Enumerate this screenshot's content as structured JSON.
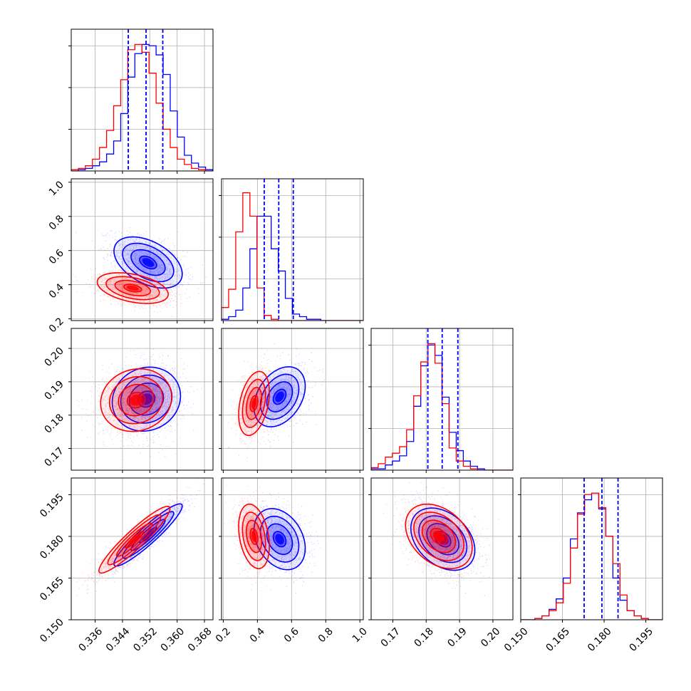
{
  "chart_data": {
    "type": "corner",
    "series": [
      {
        "name": "",
        "color": "#0000ff"
      },
      {
        "name": "",
        "color": "#ff0000"
      }
    ],
    "parameters": [
      {
        "range": [
          0.329,
          0.3705
        ],
        "ticks": [
          "0.336",
          "0.344",
          "0.352",
          "0.360",
          "0.368"
        ],
        "tick_values": [
          0.336,
          0.344,
          0.352,
          0.36,
          0.368
        ]
      },
      {
        "range": [
          0.19,
          1.02
        ],
        "ticks": [
          "0.2",
          "0.4",
          "0.6",
          "0.8",
          "1.0"
        ],
        "tick_values": [
          0.2,
          0.4,
          0.6,
          0.8,
          1.0
        ]
      },
      {
        "range": [
          0.1635,
          0.206
        ],
        "ticks": [
          "0.17",
          "0.18",
          "0.19",
          "0.20"
        ],
        "tick_values": [
          0.17,
          0.18,
          0.19,
          0.2
        ]
      },
      {
        "range": [
          0.15,
          0.201
        ],
        "ticks": [
          "0.150",
          "0.165",
          "0.180",
          "0.195"
        ],
        "tick_values": [
          0.15,
          0.165,
          0.18,
          0.195
        ]
      }
    ],
    "quantiles": [
      [
        0.3457,
        0.3509,
        0.3558
      ],
      [
        0.44,
        0.525,
        0.61
      ],
      [
        0.1805,
        0.1848,
        0.1895
      ],
      [
        0.1728,
        0.1792,
        0.185
      ]
    ],
    "histograms": [
      {
        "edges_start": 0.329,
        "edges_step": 0.00207,
        "blue": [
          0,
          1,
          2,
          4,
          7,
          13,
          23,
          44,
          72,
          90,
          97,
          96,
          89,
          74,
          46,
          26,
          12,
          6,
          3,
          1
        ],
        "red": [
          1,
          2,
          4,
          9,
          18,
          31,
          50,
          70,
          93,
          97,
          91,
          75,
          52,
          32,
          18,
          9,
          5,
          2,
          1,
          0
        ]
      },
      {
        "edges_start": 0.19,
        "edges_step": 0.0415,
        "blue": [
          1,
          3,
          8,
          25,
          55,
          80,
          80,
          55,
          38,
          17,
          5,
          3,
          1,
          1,
          0,
          0,
          0,
          0,
          0,
          0
        ],
        "red": [
          10,
          24,
          68,
          98,
          80,
          25,
          4,
          1,
          0,
          0,
          0,
          0,
          0,
          0,
          0,
          0,
          0,
          0,
          0,
          0
        ]
      },
      {
        "edges_start": 0.1635,
        "edges_step": 0.002125,
        "blue": [
          1,
          1,
          4,
          7,
          11,
          22,
          49,
          80,
          96,
          88,
          56,
          29,
          15,
          7,
          3,
          1,
          0,
          0,
          0,
          0
        ],
        "red": [
          2,
          5,
          10,
          13,
          18,
          31,
          57,
          83,
          97,
          82,
          51,
          17,
          7,
          3,
          1,
          0,
          0,
          0,
          0,
          0
        ]
      },
      {
        "edges_start": 0.15,
        "edges_step": 0.00255,
        "blue": [
          0,
          0,
          1,
          3,
          8,
          16,
          32,
          62,
          82,
          92,
          97,
          85,
          64,
          32,
          15,
          7,
          3,
          1,
          0,
          0
        ],
        "red": [
          0,
          0,
          1,
          3,
          7,
          13,
          28,
          55,
          81,
          96,
          97,
          86,
          64,
          43,
          19,
          7,
          3,
          1,
          0,
          0
        ]
      }
    ],
    "correlations": [
      {
        "row": 1,
        "col": 0,
        "blue": {
          "cx": 0.3515,
          "cy": 0.53,
          "sx": 0.005,
          "sy": 0.075,
          "rho": -0.45
        },
        "red": {
          "cx": 0.347,
          "cy": 0.38,
          "sx": 0.0052,
          "sy": 0.045,
          "rho": -0.4
        }
      },
      {
        "row": 2,
        "col": 0,
        "blue": {
          "cx": 0.351,
          "cy": 0.1848,
          "sx": 0.005,
          "sy": 0.0048,
          "rho": 0.1
        },
        "red": {
          "cx": 0.348,
          "cy": 0.1845,
          "sx": 0.0052,
          "sy": 0.0047,
          "rho": 0.1
        }
      },
      {
        "row": 2,
        "col": 1,
        "blue": {
          "cx": 0.53,
          "cy": 0.1855,
          "sx": 0.075,
          "sy": 0.0045,
          "rho": 0.35
        },
        "red": {
          "cx": 0.38,
          "cy": 0.1835,
          "sx": 0.045,
          "sy": 0.0048,
          "rho": 0.35
        }
      },
      {
        "row": 3,
        "col": 0,
        "blue": {
          "cx": 0.3515,
          "cy": 0.1805,
          "sx": 0.005,
          "sy": 0.0056,
          "rho": 0.93
        },
        "red": {
          "cx": 0.3475,
          "cy": 0.1788,
          "sx": 0.0052,
          "sy": 0.006,
          "rho": 0.93
        }
      },
      {
        "row": 3,
        "col": 1,
        "blue": {
          "cx": 0.53,
          "cy": 0.179,
          "sx": 0.075,
          "sy": 0.0055,
          "rho": -0.3
        },
        "red": {
          "cx": 0.38,
          "cy": 0.18,
          "sx": 0.045,
          "sy": 0.0058,
          "rho": -0.3
        }
      },
      {
        "row": 3,
        "col": 2,
        "blue": {
          "cx": 0.185,
          "cy": 0.179,
          "sx": 0.0048,
          "sy": 0.0056,
          "rho": -0.35
        },
        "red": {
          "cx": 0.1838,
          "cy": 0.18,
          "sx": 0.005,
          "sy": 0.0058,
          "rho": -0.35
        }
      }
    ],
    "grid": true,
    "legend": "none",
    "title": "",
    "xlabel": "",
    "ylabel": ""
  }
}
